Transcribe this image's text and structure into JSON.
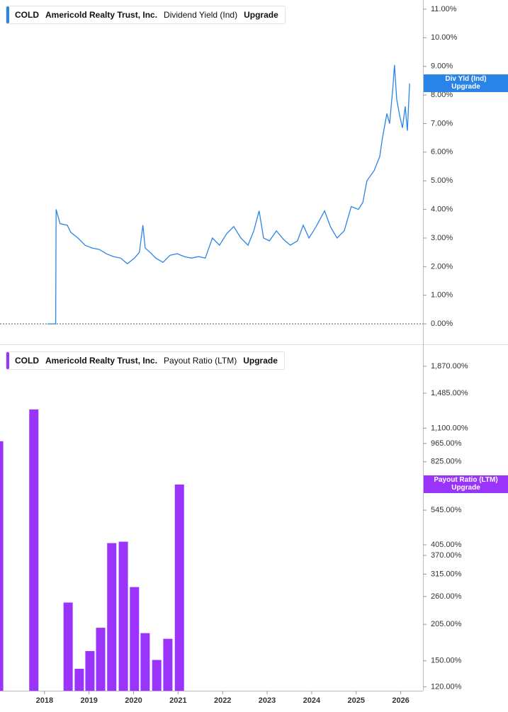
{
  "chart_data": [
    {
      "type": "line",
      "legend": {
        "ticker": "COLD",
        "company": "Americold Realty Trust, Inc.",
        "metric": "Dividend Yield (Ind)",
        "action": "Upgrade"
      },
      "current_label": [
        "Div Yld (Ind)",
        "Upgrade"
      ],
      "color": "#2a84e8",
      "zero_line": true,
      "xlim": [
        2017,
        2026.5
      ],
      "ylim": [
        -0.69,
        11.32
      ],
      "yticks": [
        {
          "value": 11,
          "label": "11.00%"
        },
        {
          "value": 10,
          "label": "10.00%"
        },
        {
          "value": 9,
          "label": "9.00%"
        },
        {
          "value": 8,
          "label": "8.00%"
        },
        {
          "value": 7,
          "label": "7.00%"
        },
        {
          "value": 6,
          "label": "6.00%"
        },
        {
          "value": 5,
          "label": "5.00%"
        },
        {
          "value": 4,
          "label": "4.00%"
        },
        {
          "value": 3,
          "label": "3.00%"
        },
        {
          "value": 2,
          "label": "2.00%"
        },
        {
          "value": 1,
          "label": "1.00%"
        },
        {
          "value": 0,
          "label": "0.00%"
        }
      ],
      "x": [
        2018.07,
        2018.25,
        2018.26,
        2018.35,
        2018.51,
        2018.59,
        2018.75,
        2018.91,
        2019.07,
        2019.23,
        2019.39,
        2019.55,
        2019.71,
        2019.86,
        2020.02,
        2020.13,
        2020.21,
        2020.26,
        2020.37,
        2020.5,
        2020.66,
        2020.82,
        2020.98,
        2021.14,
        2021.3,
        2021.46,
        2021.61,
        2021.77,
        2021.93,
        2022.09,
        2022.25,
        2022.41,
        2022.57,
        2022.7,
        2022.82,
        2022.92,
        2023.05,
        2023.21,
        2023.37,
        2023.52,
        2023.68,
        2023.81,
        2023.94,
        2024.1,
        2024.29,
        2024.42,
        2024.57,
        2024.73,
        2024.89,
        2025.05,
        2025.15,
        2025.24,
        2025.4,
        2025.53,
        2025.59,
        2025.69,
        2025.75,
        2025.82,
        2025.86,
        2025.91,
        2025.98,
        2026.04,
        2026.1,
        2026.15,
        2026.2
      ],
      "values": [
        0,
        0,
        4.0,
        3.5,
        3.45,
        3.2,
        3.0,
        2.75,
        2.65,
        2.6,
        2.45,
        2.35,
        2.3,
        2.1,
        2.3,
        2.5,
        3.45,
        2.65,
        2.5,
        2.3,
        2.15,
        2.4,
        2.45,
        2.35,
        2.3,
        2.35,
        2.3,
        3.0,
        2.75,
        3.15,
        3.4,
        3.0,
        2.75,
        3.25,
        3.95,
        3.0,
        2.9,
        3.25,
        2.95,
        2.75,
        2.9,
        3.45,
        3.0,
        3.4,
        3.95,
        3.4,
        3.0,
        3.25,
        4.1,
        4.0,
        4.25,
        5.0,
        5.35,
        5.85,
        6.5,
        7.35,
        7.0,
        8.2,
        9.05,
        7.85,
        7.25,
        6.85,
        7.6,
        6.75,
        8.4
      ]
    },
    {
      "type": "bar",
      "legend": {
        "ticker": "COLD",
        "company": "Americold Realty Trust, Inc.",
        "metric": "Payout Ratio (LTM)",
        "action": "Upgrade"
      },
      "current_label": [
        "Payout Ratio (LTM)",
        "Upgrade"
      ],
      "color": "#9b34fb",
      "log_scale": true,
      "xlim": [
        2017,
        2026.5
      ],
      "xticks": [
        2018,
        2019,
        2020,
        2021,
        2022,
        2023,
        2024,
        2025,
        2026
      ],
      "ylim": [
        116,
        2230
      ],
      "yticks": [
        {
          "value": 1870,
          "label": "1,870.00%"
        },
        {
          "value": 1485,
          "label": "1,485.00%"
        },
        {
          "value": 1100,
          "label": "1,100.00%"
        },
        {
          "value": 965,
          "label": "965.00%"
        },
        {
          "value": 825,
          "label": "825.00%"
        },
        {
          "value": 545,
          "label": "545.00%"
        },
        {
          "value": 405,
          "label": "405.00%"
        },
        {
          "value": 370,
          "label": "370.00%"
        },
        {
          "value": 315,
          "label": "315.00%"
        },
        {
          "value": 260,
          "label": "260.00%"
        },
        {
          "value": 205,
          "label": "205.00%"
        },
        {
          "value": 150,
          "label": "150.00%"
        },
        {
          "value": 120,
          "label": "120.00%"
        }
      ],
      "x": [
        2016.97,
        2017.76,
        2018.53,
        2018.78,
        2019.02,
        2019.26,
        2019.51,
        2019.77,
        2020.02,
        2020.26,
        2020.52,
        2020.77,
        2021.03
      ],
      "values": [
        984,
        1292,
        247,
        140,
        163,
        199,
        411,
        416,
        282,
        190,
        151,
        181,
        679
      ]
    }
  ]
}
